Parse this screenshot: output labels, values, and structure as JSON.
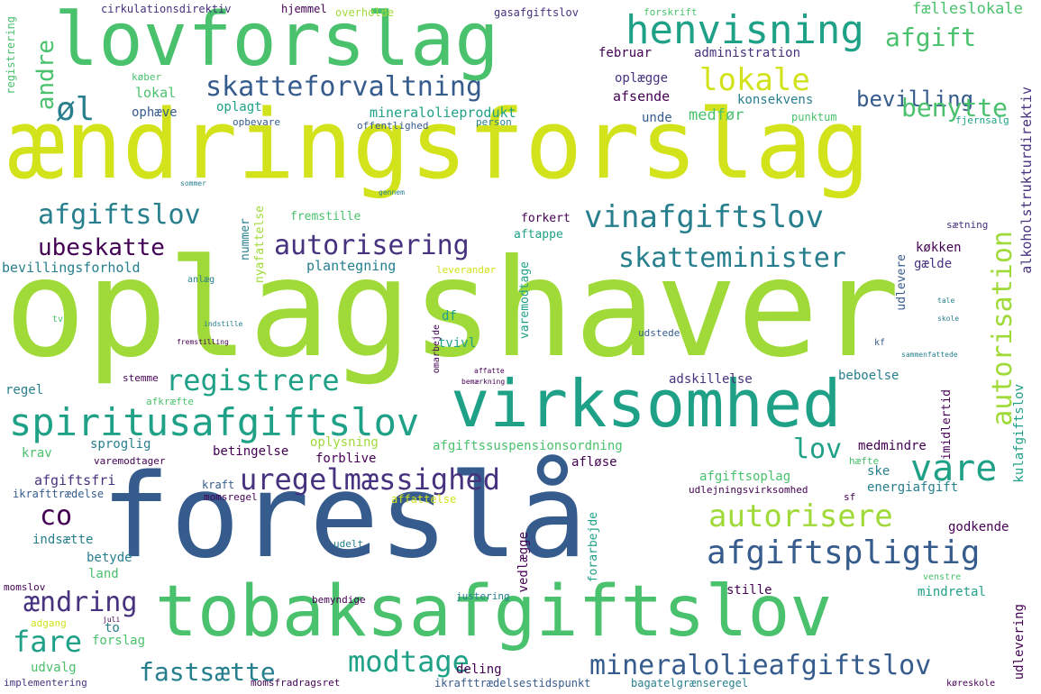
{
  "colors": {
    "background": "#ffffff",
    "yellow": "#d2e21b",
    "lightgreen": "#a0da39",
    "green": "#4ac16d",
    "teal": "#1fa187",
    "cyan": "#277f8e",
    "blue": "#365c8d",
    "indigo": "#46327e",
    "purple": "#440154"
  },
  "words": {
    "oplagshaver": "oplagshaver",
    "aendringsforslag": "ændringsforslag",
    "foreslaa": "foreslå",
    "lovforslag": "lovforslag",
    "tobaksafgiftslov": "tobaksafgiftslov",
    "virksomhed": "virksomhed",
    "spiritusafgiftslov": "spiritusafgiftslov",
    "henvisning": "henvisning",
    "skatteforvaltning": "skatteforvaltning",
    "vinafgiftslov": "vinafgiftslov",
    "afgiftslov": "afgiftslov",
    "skatteminister": "skatteminister",
    "autorisering": "autorisering",
    "afgiftspligtig": "afgiftspligtig",
    "mineralolieafgiftslov": "mineralolieafgiftslov",
    "uregelmaessighed": "uregelmæssighed",
    "autorisere": "autorisere",
    "vare": "vare",
    "registrere": "registrere",
    "modtage": "modtage",
    "fastsaette": "fastsætte",
    "aendring": "ændring",
    "ubeskatte": "ubeskatte",
    "lokale": "lokale",
    "afgift": "afgift",
    "bevilling": "bevilling",
    "benytte": "benytte",
    "oel": "øl",
    "fare": "fare",
    "co": "co",
    "lov": "lov",
    "autorisation": "autorisation",
    "andre": "andre",
    "faelleslokale": "fælleslokale",
    "cirkulationsdirektiv": "cirkulationsdirektiv",
    "hjemmel": "hjemmel",
    "gasafgiftslov": "gasafgiftslov",
    "overholde": "overholde",
    "forskrift": "forskrift",
    "februar": "februar",
    "administration": "administration",
    "oplaegge": "oplægge",
    "konsekvens": "konsekvens",
    "mineralolieprodukt": "mineralolieprodukt",
    "afsende": "afsende",
    "lokal": "lokal",
    "ophaeve": "ophæve",
    "oplagt": "oplagt",
    "opbevare": "opbevare",
    "offentlighed": "offentlighed",
    "person": "person",
    "unde": "unde",
    "medfoer": "medfør",
    "punktum": "punktum",
    "fjernsalg": "fjernsalg",
    "alkoholstrukturdirektiv": "alkoholstrukturdirektiv",
    "registrering": "registrering",
    "koeber": "køber",
    "fremstille": "fremstille",
    "forkert": "forkert",
    "aftappe": "aftappe",
    "koekken": "køkken",
    "gaelde": "gælde",
    "saetning": "sætning",
    "bevillingsforhold": "bevillingsforhold",
    "plantegning": "plantegning",
    "leverandoer": "leverandør",
    "nummer": "nummer",
    "nyafattelse": "nyafattelse",
    "varemodtage": "varemodtage",
    "udlevere": "udlevere",
    "df": "df",
    "tvivl": "tvivl",
    "udstede": "udstede",
    "adskillelse": "adskillelse",
    "beboelse": "beboelse",
    "regel": "regel",
    "stemme": "stemme",
    "afkraefte": "afkræfte",
    "krav": "krav",
    "sproglig": "sproglig",
    "betingelse": "betingelse",
    "oplysning": "oplysning",
    "forblive": "forblive",
    "afgiftssuspensionsordning": "afgiftssuspensionsordning",
    "medmindre": "medmindre",
    "haefte": "hæfte",
    "imidlertid": "imidlertid",
    "kulafgiftslov": "kulafgiftslov",
    "afgiftsfri": "afgiftsfri",
    "varemodtager": "varemodtager",
    "afloese": "afløse",
    "afgiftsoplag": "afgiftsoplag",
    "ske": "ske",
    "energiafgift": "energiafgift",
    "ikrafttraedelse": "ikrafttrædelse",
    "kraft": "kraft",
    "momsregel": "momsregel",
    "affattelse": "affattelse",
    "udlejningsvirksomhed": "udlejningsvirksomhed",
    "sf": "sf",
    "indsaette": "indsætte",
    "betyde": "betyde",
    "land": "land",
    "udelt": "udelt",
    "vedlaegge": "vedlægge",
    "forarbejde": "forarbejde",
    "godkende": "godkende",
    "momslov": "momslov",
    "to": "to",
    "forslag": "forslag",
    "udvalg": "udvalg",
    "implementering": "implementering",
    "adgang": "adgang",
    "deling": "deling",
    "momsfradragsret": "momsfradragsret",
    "ikrafttraedelsestidspunkt": "ikrafttrædelsestidspunkt",
    "bagatelgraenseregel": "bagatelgrænseregel",
    "justering": "justering",
    "bemyndige": "bemyndige",
    "stille": "stille",
    "mindretal": "mindretal",
    "udlevering": "udlevering",
    "venstre": "venstre",
    "koereskole": "køreskole",
    "anlaeg": "anlæg",
    "omarbejde": "omarbejde",
    "fremstilling": "fremstilling",
    "indstille": "indstille",
    "juli": "juli",
    "tv": "tv",
    "bemaerkning": "bemærkning",
    "affatte": "affatte",
    "kf": "kf",
    "tale": "tale",
    "skoleb": "skole",
    "sammenfattede": "sammenfattede",
    "sommer": "sommer",
    "gennem": "gennem"
  }
}
